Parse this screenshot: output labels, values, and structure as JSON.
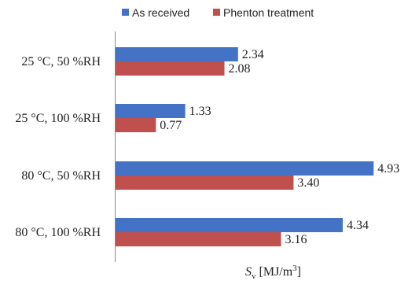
{
  "chart_data": {
    "type": "bar",
    "orientation": "horizontal",
    "categories": [
      "25 °C, 50 %RH",
      "25 °C, 100 %RH",
      "80 °C, 50 %RH",
      "80 °C, 100 %RH"
    ],
    "series": [
      {
        "name": "As received",
        "values": [
          2.34,
          1.33,
          4.93,
          4.34
        ],
        "value_labels": [
          "2.34",
          "1.33",
          "4.93",
          "4.34"
        ],
        "color": "#4472C4"
      },
      {
        "name": "Phenton treatment",
        "values": [
          2.08,
          0.77,
          3.4,
          3.16
        ],
        "value_labels": [
          "2.08",
          "0.77",
          "3.40",
          "3.16"
        ],
        "color": "#C0504D"
      }
    ],
    "xlabel": {
      "symbol": "S",
      "subscript": "v",
      "unit_open": " [MJ/m",
      "superscript": "3",
      "unit_close": "]"
    },
    "xlim": [
      0,
      5
    ],
    "grid": false,
    "legend_position": "top"
  }
}
